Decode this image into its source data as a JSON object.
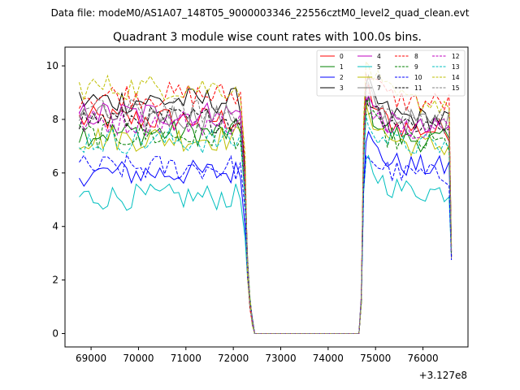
{
  "suptitle": "Data file: modeM0/AS1A07_148T05_9000003346_22556cztM0_level2_quad_clean.evt",
  "chart_data": {
    "type": "line",
    "title": "Quadrant 3 module wise count rates with 100.0s bins.",
    "xlabel": "",
    "ylabel": "",
    "x_offset_label": "+3.127e8",
    "xlim": [
      68450,
      76950
    ],
    "ylim": [
      -0.5,
      10.7
    ],
    "xticks": [
      69000,
      70000,
      71000,
      72000,
      73000,
      74000,
      75000,
      76000
    ],
    "xtick_labels": [
      "69000",
      "70000",
      "71000",
      "72000",
      "73000",
      "74000",
      "75000",
      "76000"
    ],
    "yticks": [
      0,
      2,
      4,
      6,
      8,
      10
    ],
    "ytick_labels": [
      "0",
      "2",
      "4",
      "6",
      "8",
      "10"
    ],
    "grid": false,
    "legend_position": "top-right",
    "legend_columns": 4,
    "gap_start": 72400,
    "gap_end": 74700,
    "series": [
      {
        "name": "0",
        "color": "#ff0000",
        "dash": "solid",
        "level1": 8.0,
        "level2": 7.6,
        "peak": 9.0
      },
      {
        "name": "1",
        "color": "#008000",
        "dash": "solid",
        "level1": 7.5,
        "level2": 7.2,
        "peak": 8.5
      },
      {
        "name": "2",
        "color": "#0000ff",
        "dash": "solid",
        "level1": 6.0,
        "level2": 6.2,
        "peak": 7.3
      },
      {
        "name": "3",
        "color": "#000000",
        "dash": "solid",
        "level1": 8.7,
        "level2": 8.0,
        "peak": 9.2
      },
      {
        "name": "4",
        "color": "#bf00bf",
        "dash": "solid",
        "level1": 8.2,
        "level2": 7.6,
        "peak": 8.8
      },
      {
        "name": "5",
        "color": "#00bfbf",
        "dash": "solid",
        "level1": 5.1,
        "level2": 5.3,
        "peak": 6.4
      },
      {
        "name": "6",
        "color": "#bfbf00",
        "dash": "solid",
        "level1": 7.3,
        "level2": 7.0,
        "peak": 8.4
      },
      {
        "name": "7",
        "color": "#808080",
        "dash": "solid",
        "level1": 8.1,
        "level2": 7.9,
        "peak": 9.0
      },
      {
        "name": "8",
        "color": "#ff0000",
        "dash": "dashed",
        "level1": 8.9,
        "level2": 8.6,
        "peak": 9.8
      },
      {
        "name": "9",
        "color": "#008000",
        "dash": "dashed",
        "level1": 7.4,
        "level2": 7.1,
        "peak": 8.2
      },
      {
        "name": "10",
        "color": "#0000ff",
        "dash": "dashed",
        "level1": 6.2,
        "level2": 5.9,
        "peak": 6.7
      },
      {
        "name": "11",
        "color": "#000000",
        "dash": "dashed",
        "level1": 8.0,
        "level2": 7.8,
        "peak": 8.8
      },
      {
        "name": "12",
        "color": "#bf00bf",
        "dash": "dashed",
        "level1": 7.9,
        "level2": 7.7,
        "peak": 8.7
      },
      {
        "name": "13",
        "color": "#00bfbf",
        "dash": "dashed",
        "level1": 7.2,
        "level2": 7.0,
        "peak": 8.0
      },
      {
        "name": "14",
        "color": "#bfbf00",
        "dash": "dashed",
        "level1": 9.2,
        "level2": 8.6,
        "peak": 10.1
      },
      {
        "name": "15",
        "color": "#808080",
        "dash": "dashed",
        "level1": 8.3,
        "level2": 8.0,
        "peak": 9.0
      }
    ]
  }
}
